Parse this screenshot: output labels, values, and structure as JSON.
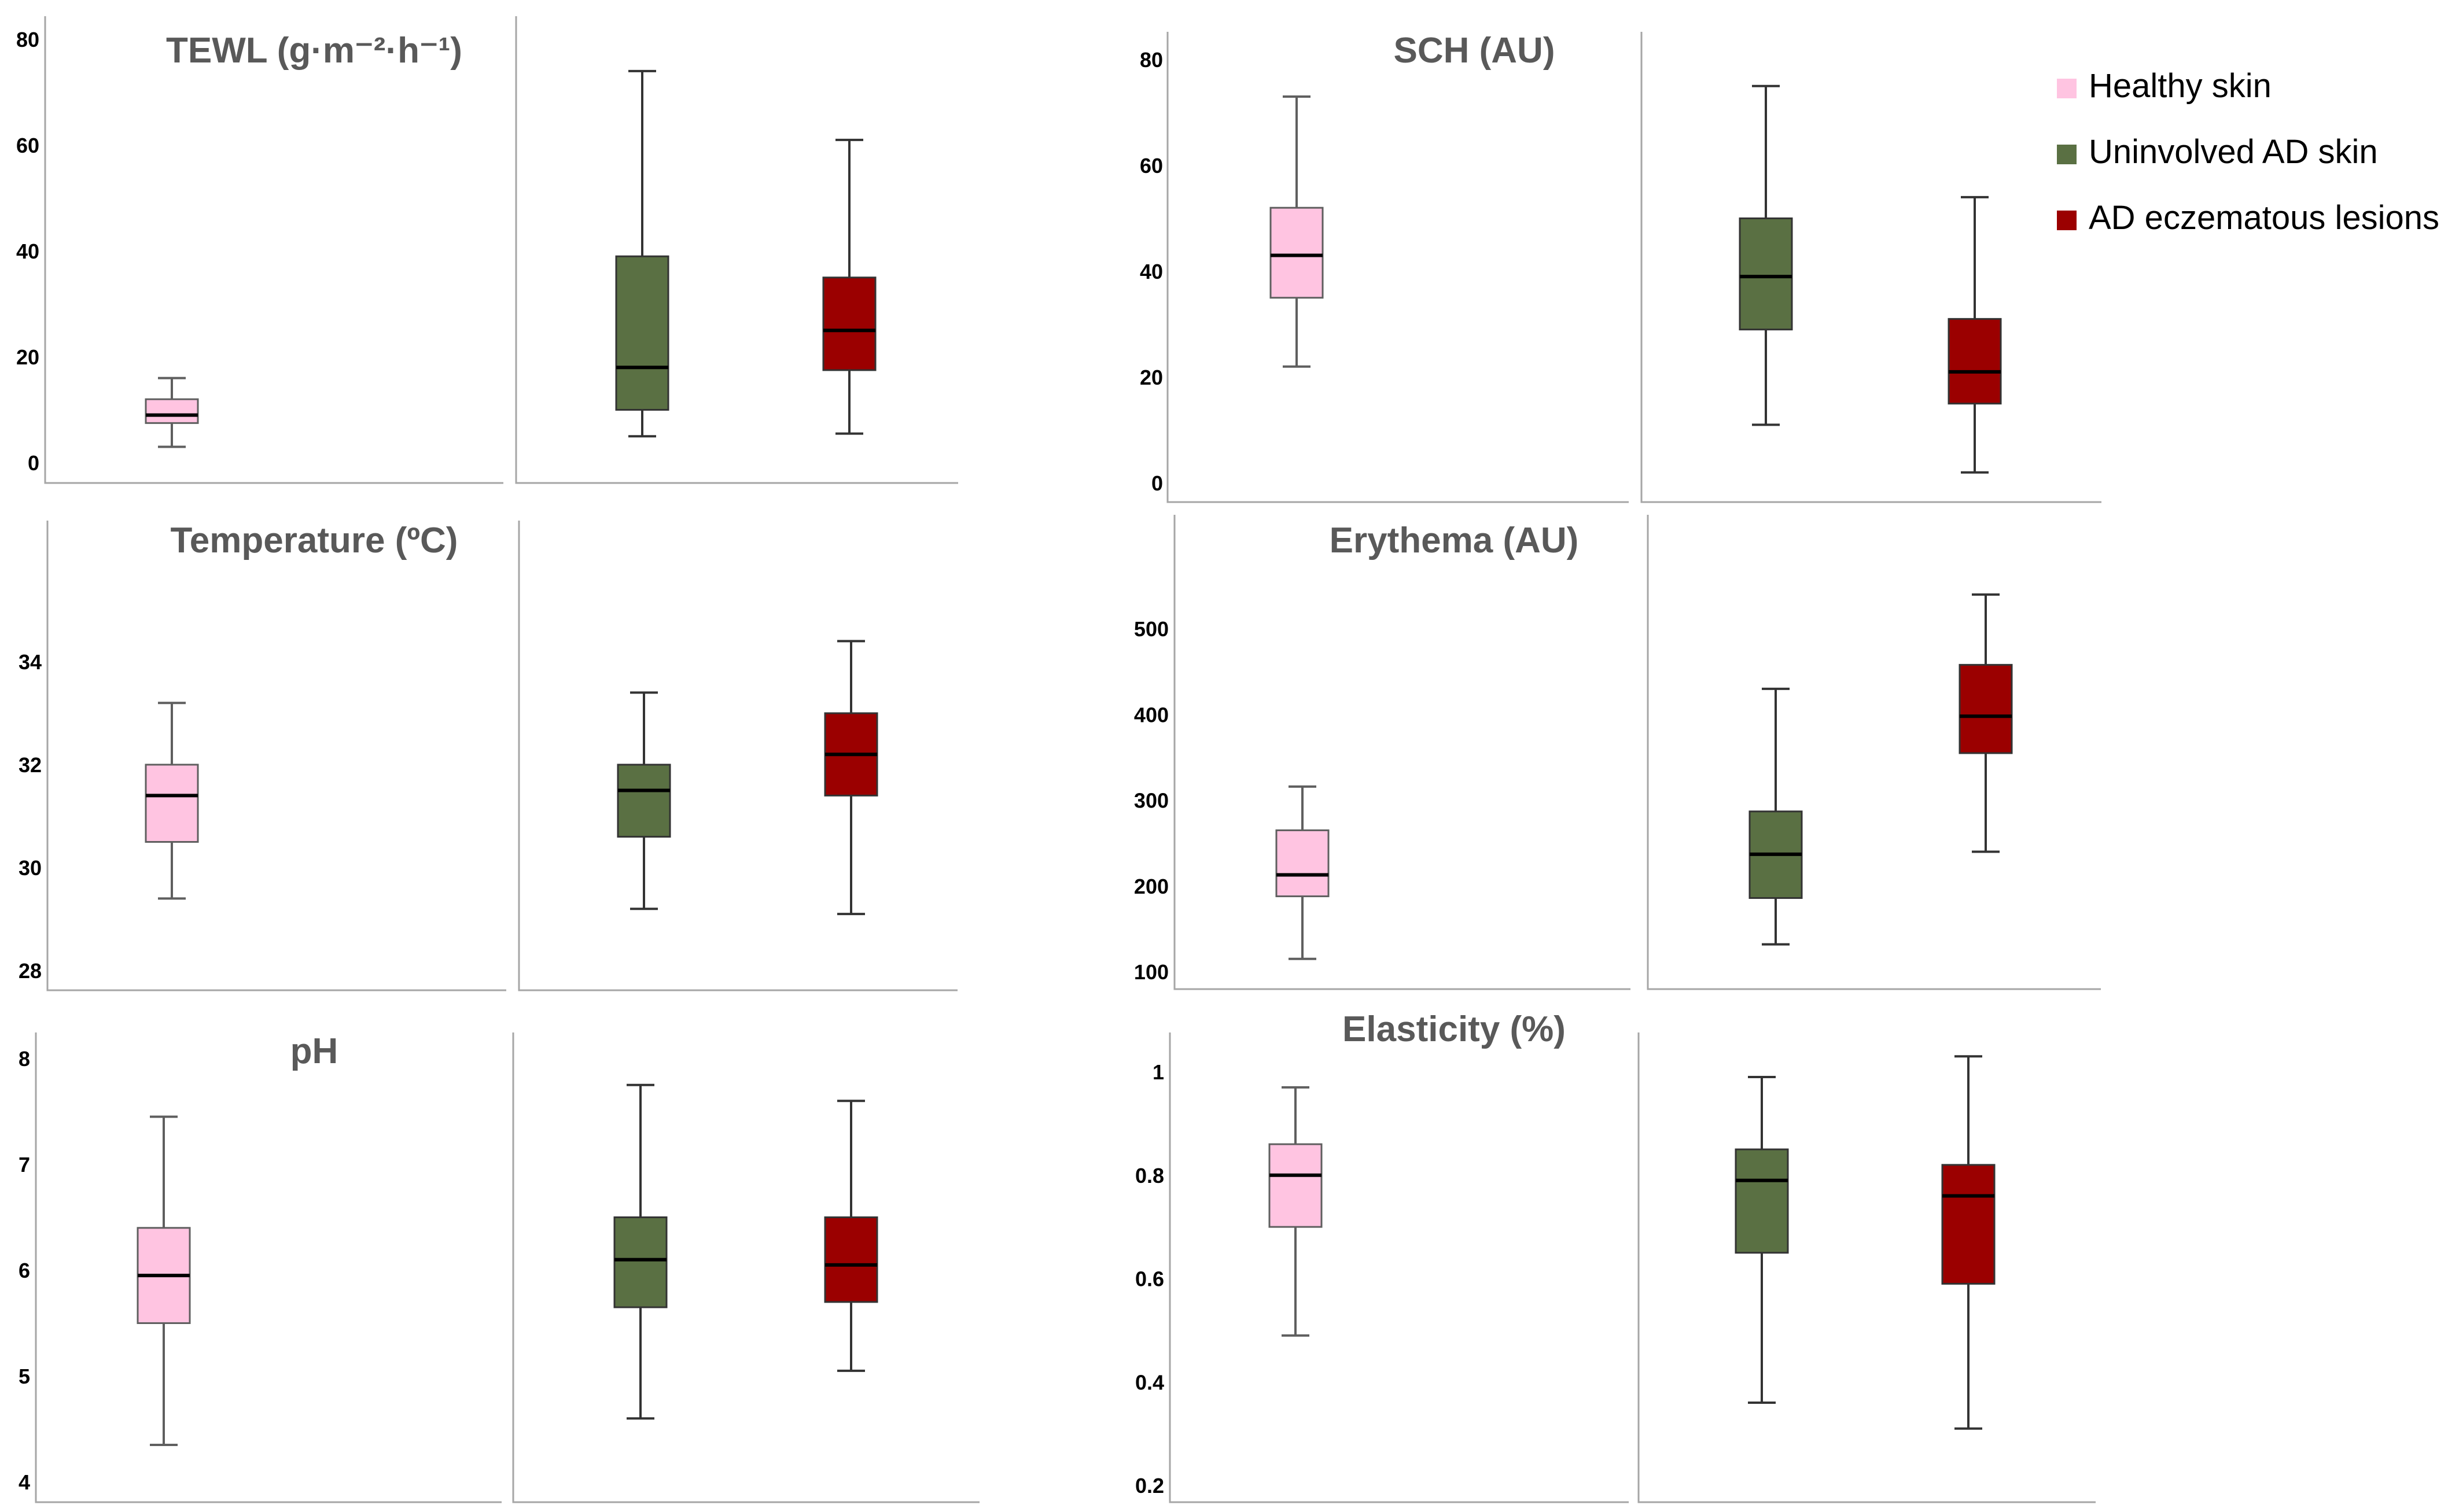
{
  "legend": {
    "position": "top-right",
    "items": [
      {
        "label": "Healthy skin",
        "color": "#ffc4e1"
      },
      {
        "label": "Uninvolved AD skin",
        "color": "#5a7043"
      },
      {
        "label": "AD eczematous lesions",
        "color": "#9b0000"
      }
    ]
  },
  "chart_data": [
    {
      "type": "boxplot",
      "title": "TEWL (g·m⁻²·h⁻¹)",
      "ylim": [
        0,
        80
      ],
      "yticks": [
        0,
        20,
        40,
        60,
        80
      ],
      "series": [
        {
          "name": "Healthy skin",
          "min": 3,
          "q1": 7.5,
          "median": 9,
          "q3": 12,
          "max": 16
        },
        {
          "name": "Uninvolved AD skin",
          "min": 5,
          "q1": 10,
          "median": 18,
          "q3": 39,
          "max": 74
        },
        {
          "name": "AD eczematous lesions",
          "min": 5.5,
          "q1": 17.5,
          "median": 25,
          "q3": 35,
          "max": 61
        }
      ]
    },
    {
      "type": "boxplot",
      "title": "SCH (AU)",
      "ylim": [
        0,
        80
      ],
      "yticks": [
        0,
        20,
        40,
        60,
        80
      ],
      "series": [
        {
          "name": "Healthy skin",
          "min": 22,
          "q1": 35,
          "median": 43,
          "q3": 52,
          "max": 73
        },
        {
          "name": "Uninvolved AD skin",
          "min": 11,
          "q1": 29,
          "median": 39,
          "q3": 50,
          "max": 75
        },
        {
          "name": "AD eczematous lesions",
          "min": 2,
          "q1": 15,
          "median": 21,
          "q3": 31,
          "max": 54
        }
      ]
    },
    {
      "type": "boxplot",
      "title": "Temperature (ºC)",
      "ylim": [
        28,
        35
      ],
      "yticks": [
        28,
        30,
        32,
        34
      ],
      "series": [
        {
          "name": "Healthy skin",
          "min": 29.4,
          "q1": 30.5,
          "median": 31.4,
          "q3": 32,
          "max": 33.2
        },
        {
          "name": "Uninvolved AD skin",
          "min": 29.2,
          "q1": 30.6,
          "median": 31.5,
          "q3": 32,
          "max": 33.4
        },
        {
          "name": "AD eczematous lesions",
          "min": 29.1,
          "q1": 31.4,
          "median": 32.2,
          "q3": 33,
          "max": 34.4
        }
      ]
    },
    {
      "type": "boxplot",
      "title": "Erythema (AU)",
      "ylim": [
        100,
        550
      ],
      "yticks": [
        100,
        200,
        300,
        400,
        500
      ],
      "series": [
        {
          "name": "Healthy skin",
          "min": 115,
          "q1": 188,
          "median": 213,
          "q3": 265,
          "max": 316
        },
        {
          "name": "Uninvolved AD skin",
          "min": 132,
          "q1": 186,
          "median": 237,
          "q3": 287,
          "max": 430
        },
        {
          "name": "AD eczematous lesions",
          "min": 240,
          "q1": 355,
          "median": 398,
          "q3": 458,
          "max": 540
        }
      ]
    },
    {
      "type": "boxplot",
      "title": "pH",
      "ylim": [
        4,
        8
      ],
      "yticks": [
        4,
        5,
        6,
        7,
        8
      ],
      "series": [
        {
          "name": "Healthy skin",
          "min": 4.35,
          "q1": 5.5,
          "median": 5.95,
          "q3": 6.4,
          "max": 7.45
        },
        {
          "name": "Uninvolved AD skin",
          "min": 4.6,
          "q1": 5.65,
          "median": 6.1,
          "q3": 6.5,
          "max": 7.75
        },
        {
          "name": "AD eczematous lesions",
          "min": 5.05,
          "q1": 5.7,
          "median": 6.05,
          "q3": 6.5,
          "max": 7.6
        }
      ]
    },
    {
      "type": "boxplot",
      "title": "Elasticity (%)",
      "ylim": [
        0.2,
        1.0
      ],
      "yticks": [
        0.2,
        0.4,
        0.6,
        0.8,
        1
      ],
      "series": [
        {
          "name": "Healthy skin",
          "min": 0.49,
          "q1": 0.7,
          "median": 0.8,
          "q3": 0.86,
          "max": 0.97
        },
        {
          "name": "Uninvolved AD skin",
          "min": 0.36,
          "q1": 0.65,
          "median": 0.79,
          "q3": 0.85,
          "max": 0.99
        },
        {
          "name": "AD eczematous lesions",
          "min": 0.31,
          "q1": 0.59,
          "median": 0.76,
          "q3": 0.82,
          "max": 1.03
        }
      ]
    }
  ]
}
